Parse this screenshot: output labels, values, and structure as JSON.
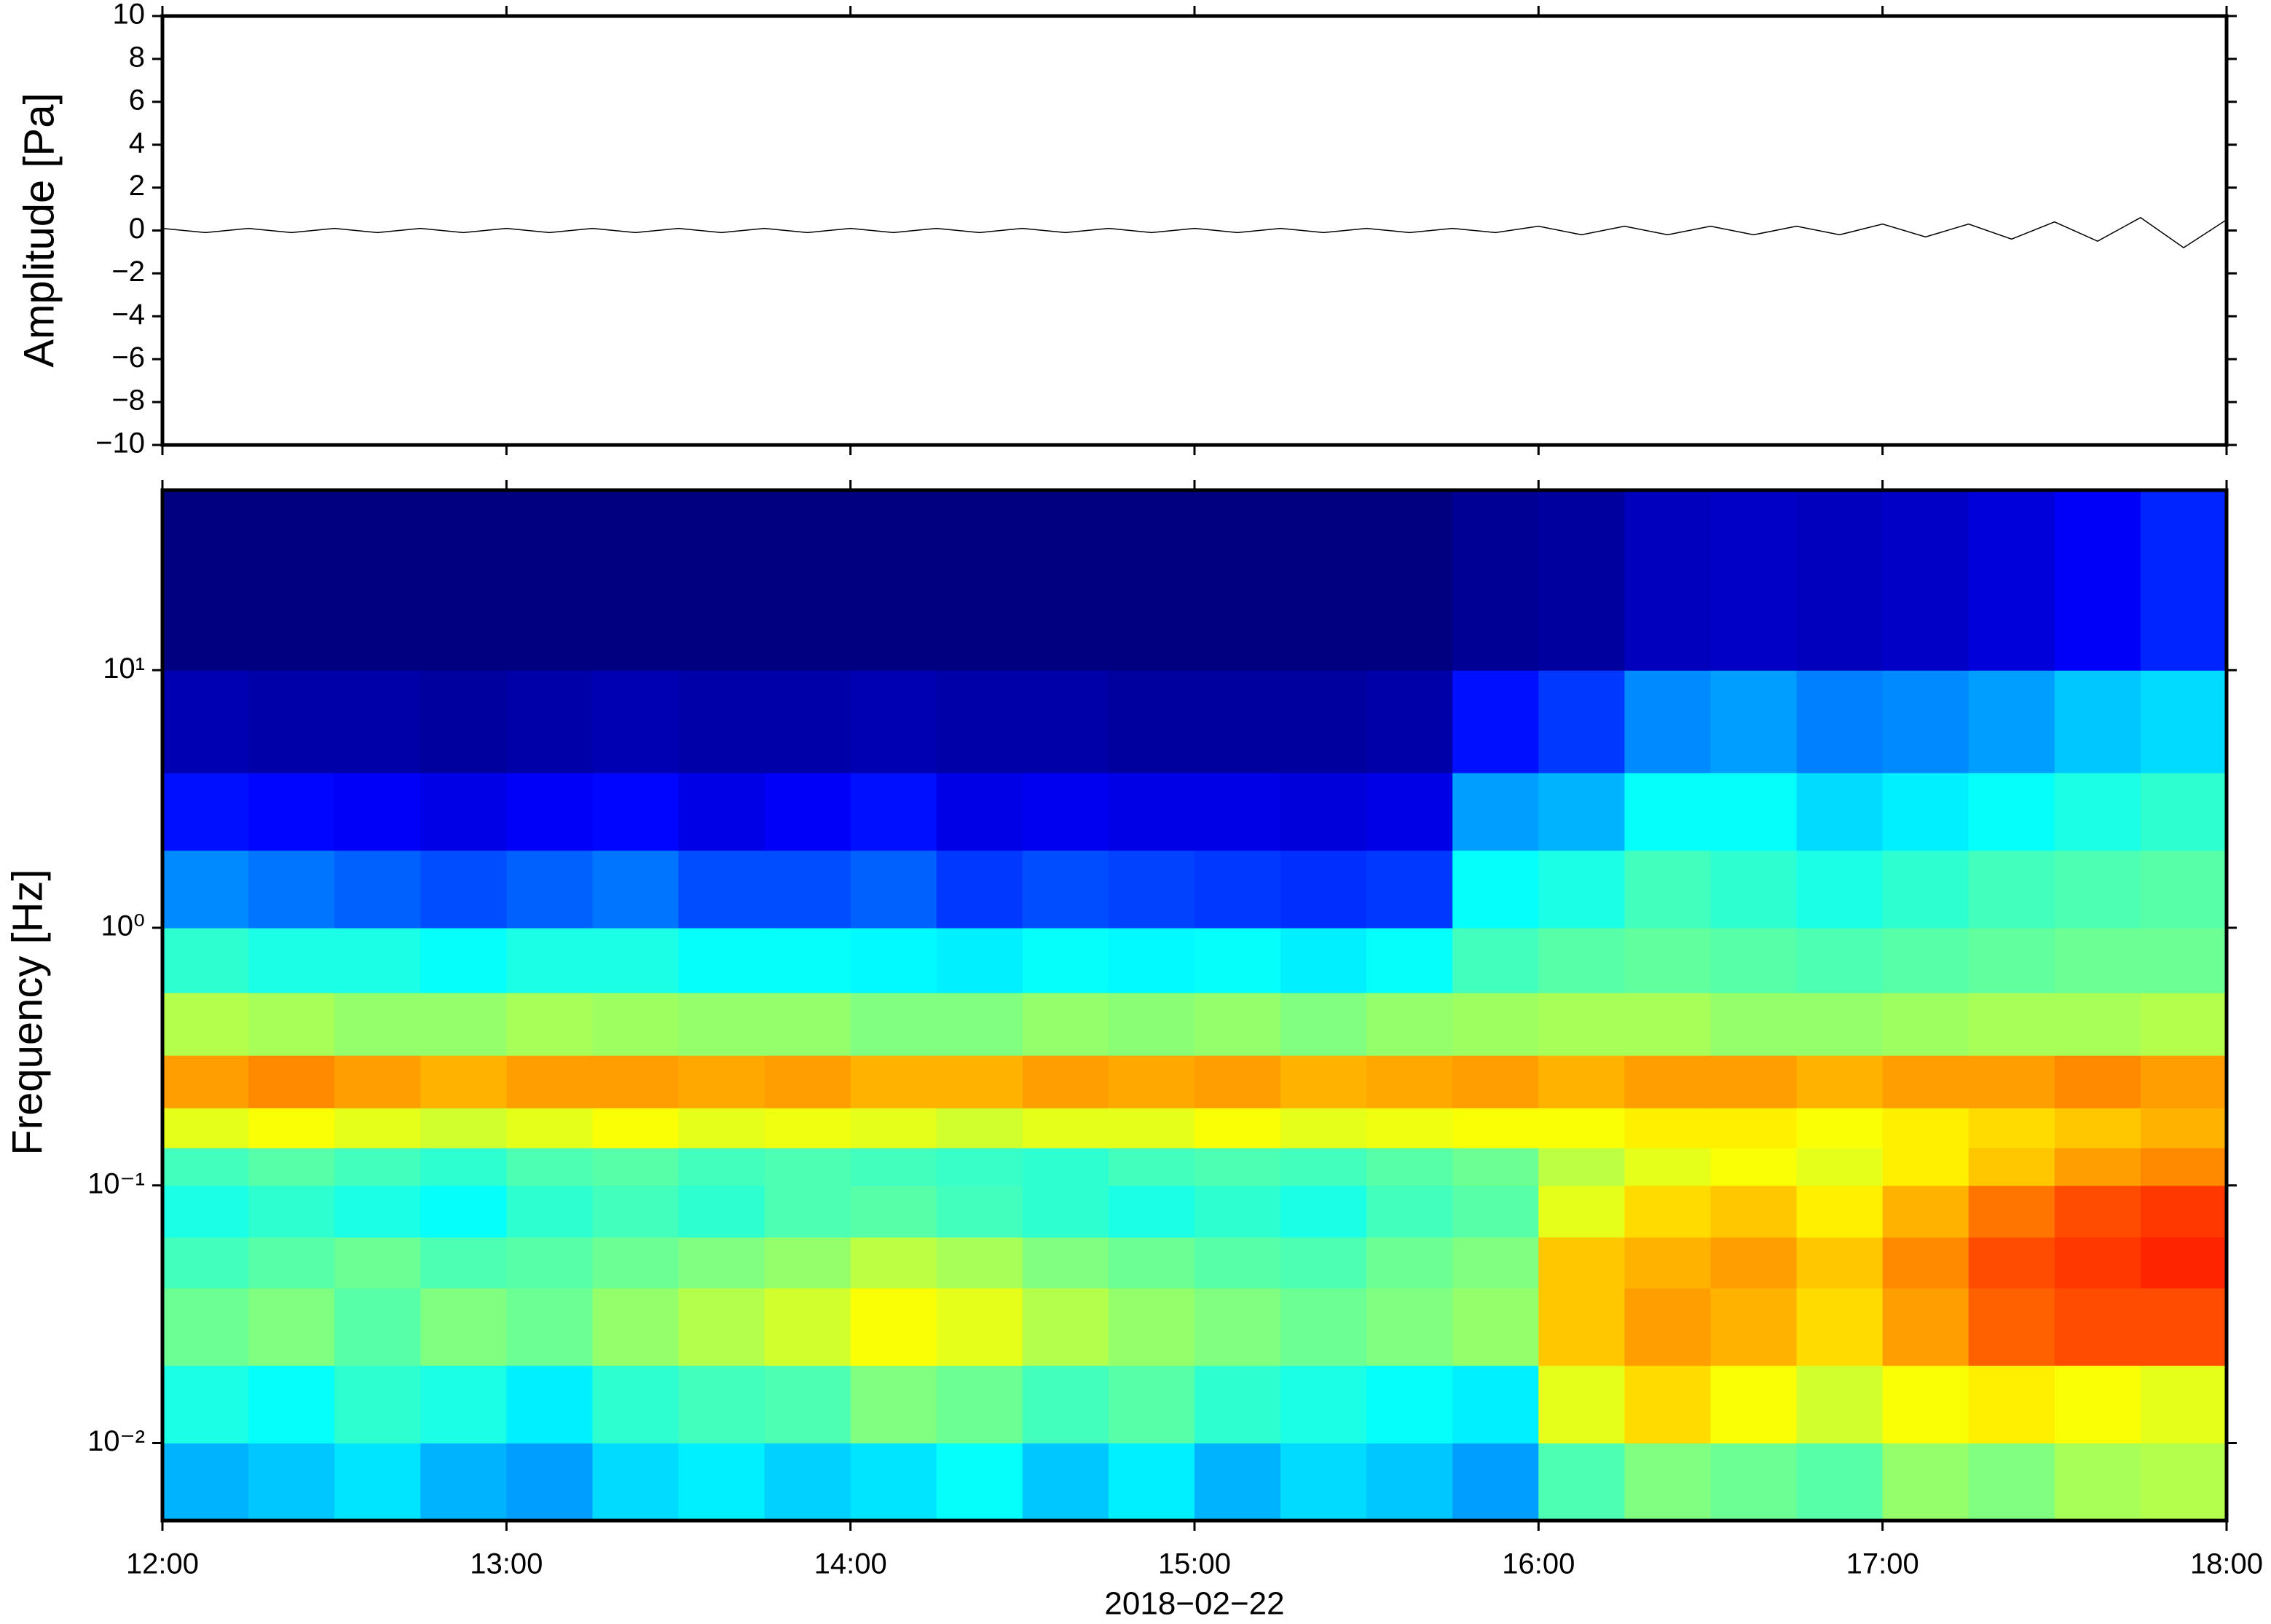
{
  "chart_data": [
    {
      "type": "line",
      "ylabel": "Amplitude [Pa]",
      "xlim": [
        12,
        18
      ],
      "ylim": [
        -10,
        10
      ],
      "yticks": [
        {
          "value": -10,
          "label": "−10"
        },
        {
          "value": -8,
          "label": "−8"
        },
        {
          "value": -6,
          "label": "−6"
        },
        {
          "value": -4,
          "label": "−4"
        },
        {
          "value": -2,
          "label": "−2"
        },
        0,
        2,
        4,
        6,
        8,
        10
      ],
      "color": "#000000",
      "x": [
        12,
        12.125,
        12.25,
        12.375,
        12.5,
        12.625,
        12.75,
        12.875,
        13,
        13.125,
        13.25,
        13.375,
        13.5,
        13.625,
        13.75,
        13.875,
        14,
        14.125,
        14.25,
        14.375,
        14.5,
        14.625,
        14.75,
        14.875,
        15,
        15.125,
        15.25,
        15.375,
        15.5,
        15.625,
        15.75,
        15.875,
        16,
        16.125,
        16.25,
        16.375,
        16.5,
        16.625,
        16.75,
        16.875,
        17,
        17.125,
        17.25,
        17.375,
        17.5,
        17.625,
        17.75,
        17.875,
        18
      ],
      "values": [
        0.1,
        -0.1,
        0.1,
        -0.1,
        0.1,
        -0.1,
        0.1,
        -0.1,
        0.1,
        -0.1,
        0.1,
        -0.1,
        0.1,
        -0.1,
        0.1,
        -0.1,
        0.1,
        -0.1,
        0.1,
        -0.1,
        0.1,
        -0.1,
        0.1,
        -0.1,
        0.1,
        -0.1,
        0.1,
        -0.1,
        0.1,
        -0.1,
        0.1,
        -0.1,
        0.2,
        -0.2,
        0.2,
        -0.2,
        0.2,
        -0.2,
        0.2,
        -0.2,
        0.3,
        -0.3,
        0.3,
        -0.4,
        0.4,
        -0.5,
        0.6,
        -0.8,
        0.5
      ]
    },
    {
      "type": "heatmap",
      "ylabel": "Frequency [Hz]",
      "xlabel": "2018−02−22",
      "colormap": "jet",
      "log_y": true,
      "xlim": [
        12,
        18
      ],
      "xticks": [
        {
          "value": 12,
          "label": "12:00"
        },
        {
          "value": 13,
          "label": "13:00"
        },
        {
          "value": 14,
          "label": "14:00"
        },
        {
          "value": 15,
          "label": "15:00"
        },
        {
          "value": 16,
          "label": "16:00"
        },
        {
          "value": 17,
          "label": "17:00"
        },
        {
          "value": 18,
          "label": "18:00"
        }
      ],
      "ylim": [
        0.005,
        50
      ],
      "yticks": [
        {
          "value": 0.01,
          "label": "10⁻²"
        },
        {
          "value": 0.1,
          "label": "10⁻¹"
        },
        {
          "value": 1,
          "label": "10⁰"
        },
        {
          "value": 10,
          "label": "10¹"
        }
      ],
      "zlim": [
        0,
        100
      ],
      "x_bins": [
        12,
        12.25,
        12.5,
        12.75,
        13,
        13.25,
        13.5,
        13.75,
        14,
        14.25,
        14.5,
        14.75,
        15,
        15.25,
        15.5,
        15.75,
        16,
        16.25,
        16.5,
        16.75,
        17,
        17.25,
        17.5,
        17.75,
        18
      ],
      "y_bins": [
        0.005,
        0.01,
        0.02,
        0.04,
        0.063,
        0.1,
        0.14,
        0.2,
        0.32,
        0.56,
        1,
        2,
        4,
        10,
        50
      ],
      "z": [
        [
          30,
          32,
          35,
          30,
          28,
          34,
          36,
          33,
          35,
          38,
          32,
          36,
          30,
          34,
          32,
          28,
          45,
          50,
          48,
          46,
          52,
          50,
          54,
          55
        ],
        [
          40,
          38,
          42,
          40,
          36,
          42,
          44,
          45,
          50,
          48,
          44,
          46,
          42,
          40,
          38,
          36,
          60,
          66,
          62,
          58,
          62,
          64,
          62,
          60
        ],
        [
          48,
          50,
          46,
          50,
          48,
          52,
          55,
          58,
          62,
          60,
          55,
          52,
          50,
          48,
          50,
          52,
          68,
          72,
          70,
          66,
          72,
          78,
          80,
          80
        ],
        [
          44,
          46,
          48,
          45,
          46,
          48,
          50,
          52,
          56,
          54,
          50,
          48,
          46,
          45,
          48,
          50,
          68,
          70,
          72,
          68,
          74,
          80,
          82,
          84
        ],
        [
          40,
          42,
          40,
          38,
          42,
          44,
          42,
          45,
          46,
          44,
          42,
          40,
          42,
          40,
          44,
          46,
          60,
          66,
          68,
          64,
          70,
          76,
          80,
          82
        ],
        [
          44,
          46,
          44,
          42,
          45,
          46,
          44,
          45,
          44,
          43,
          42,
          44,
          45,
          44,
          46,
          48,
          56,
          60,
          62,
          60,
          64,
          68,
          72,
          74
        ],
        [
          60,
          62,
          60,
          58,
          60,
          62,
          60,
          61,
          60,
          58,
          60,
          60,
          62,
          60,
          61,
          62,
          62,
          64,
          64,
          62,
          64,
          66,
          68,
          70
        ],
        [
          72,
          74,
          72,
          70,
          72,
          72,
          71,
          72,
          70,
          70,
          72,
          71,
          72,
          70,
          71,
          72,
          70,
          72,
          72,
          70,
          72,
          72,
          74,
          72
        ],
        [
          55,
          54,
          52,
          52,
          54,
          53,
          52,
          52,
          50,
          50,
          52,
          51,
          52,
          50,
          52,
          53,
          54,
          54,
          52,
          52,
          53,
          54,
          54,
          55
        ],
        [
          42,
          40,
          40,
          38,
          40,
          40,
          38,
          38,
          37,
          36,
          38,
          37,
          38,
          36,
          38,
          44,
          46,
          47,
          46,
          45,
          46,
          47,
          48,
          48
        ],
        [
          26,
          24,
          22,
          20,
          22,
          24,
          20,
          20,
          22,
          18,
          20,
          19,
          18,
          17,
          18,
          38,
          40,
          44,
          42,
          40,
          42,
          44,
          45,
          46
        ],
        [
          14,
          13,
          12,
          10,
          12,
          13,
          10,
          12,
          14,
          10,
          11,
          10,
          10,
          9,
          10,
          28,
          30,
          38,
          38,
          34,
          36,
          38,
          40,
          42
        ],
        [
          5,
          4,
          4,
          3,
          4,
          5,
          4,
          4,
          5,
          4,
          4,
          3,
          3,
          3,
          4,
          14,
          18,
          26,
          28,
          25,
          26,
          28,
          32,
          34
        ],
        [
          0,
          0,
          0,
          0,
          0,
          0,
          0,
          0,
          0,
          0,
          0,
          0,
          0,
          0,
          0,
          2,
          3,
          6,
          7,
          6,
          7,
          9,
          12,
          16
        ]
      ]
    }
  ]
}
